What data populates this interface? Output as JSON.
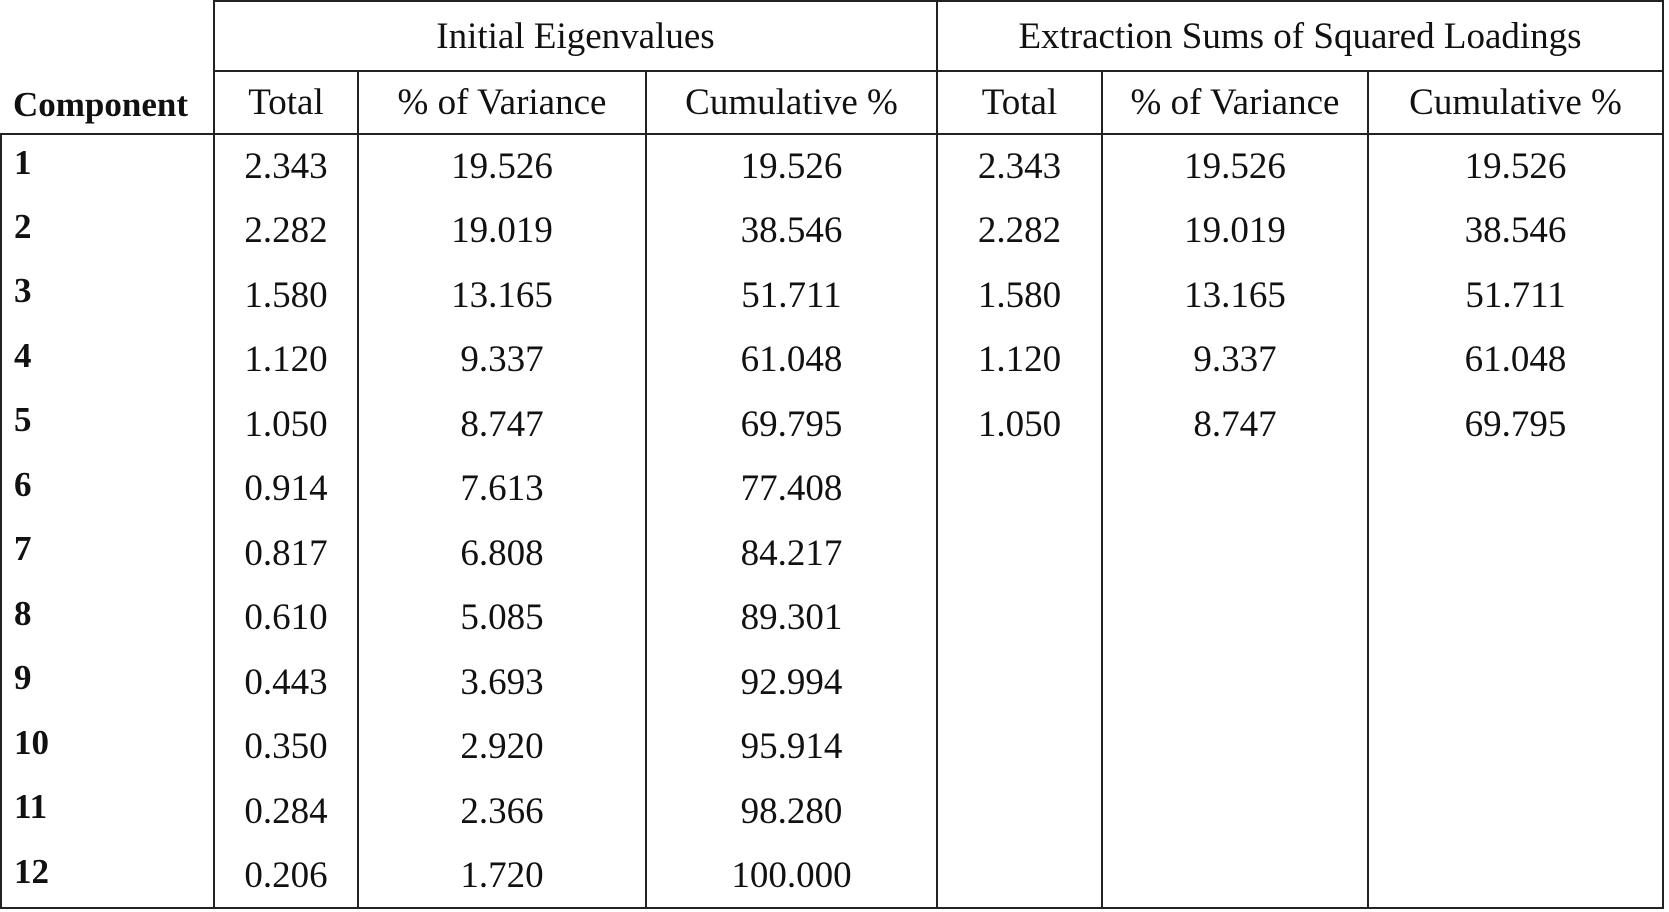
{
  "header": {
    "component": "Component",
    "groups": [
      "Initial Eigenvalues",
      "Extraction Sums of Squared Loadings"
    ],
    "columns": [
      "Total",
      "% of Variance",
      "Cumulative %",
      "Total",
      "% of Variance",
      "Cumulative %"
    ]
  },
  "table": {
    "rows": [
      {
        "component": "1",
        "initial": [
          "2.343",
          "19.526",
          "19.526"
        ],
        "extraction": [
          "2.343",
          "19.526",
          "19.526"
        ]
      },
      {
        "component": "2",
        "initial": [
          "2.282",
          "19.019",
          "38.546"
        ],
        "extraction": [
          "2.282",
          "19.019",
          "38.546"
        ]
      },
      {
        "component": "3",
        "initial": [
          "1.580",
          "13.165",
          "51.711"
        ],
        "extraction": [
          "1.580",
          "13.165",
          "51.711"
        ]
      },
      {
        "component": "4",
        "initial": [
          "1.120",
          "9.337",
          "61.048"
        ],
        "extraction": [
          "1.120",
          "9.337",
          "61.048"
        ]
      },
      {
        "component": "5",
        "initial": [
          "1.050",
          "8.747",
          "69.795"
        ],
        "extraction": [
          "1.050",
          "8.747",
          "69.795"
        ]
      },
      {
        "component": "6",
        "initial": [
          "0.914",
          "7.613",
          "77.408"
        ]
      },
      {
        "component": "7",
        "initial": [
          "0.817",
          "6.808",
          "84.217"
        ]
      },
      {
        "component": "8",
        "initial": [
          "0.610",
          "5.085",
          "89.301"
        ]
      },
      {
        "component": "9",
        "initial": [
          "0.443",
          "3.693",
          "92.994"
        ]
      },
      {
        "component": "10",
        "initial": [
          "0.350",
          "2.920",
          "95.914"
        ]
      },
      {
        "component": "11",
        "initial": [
          "0.284",
          "2.366",
          "98.280"
        ]
      },
      {
        "component": "12",
        "initial": [
          "0.206",
          "1.720",
          "100.000"
        ]
      }
    ]
  }
}
